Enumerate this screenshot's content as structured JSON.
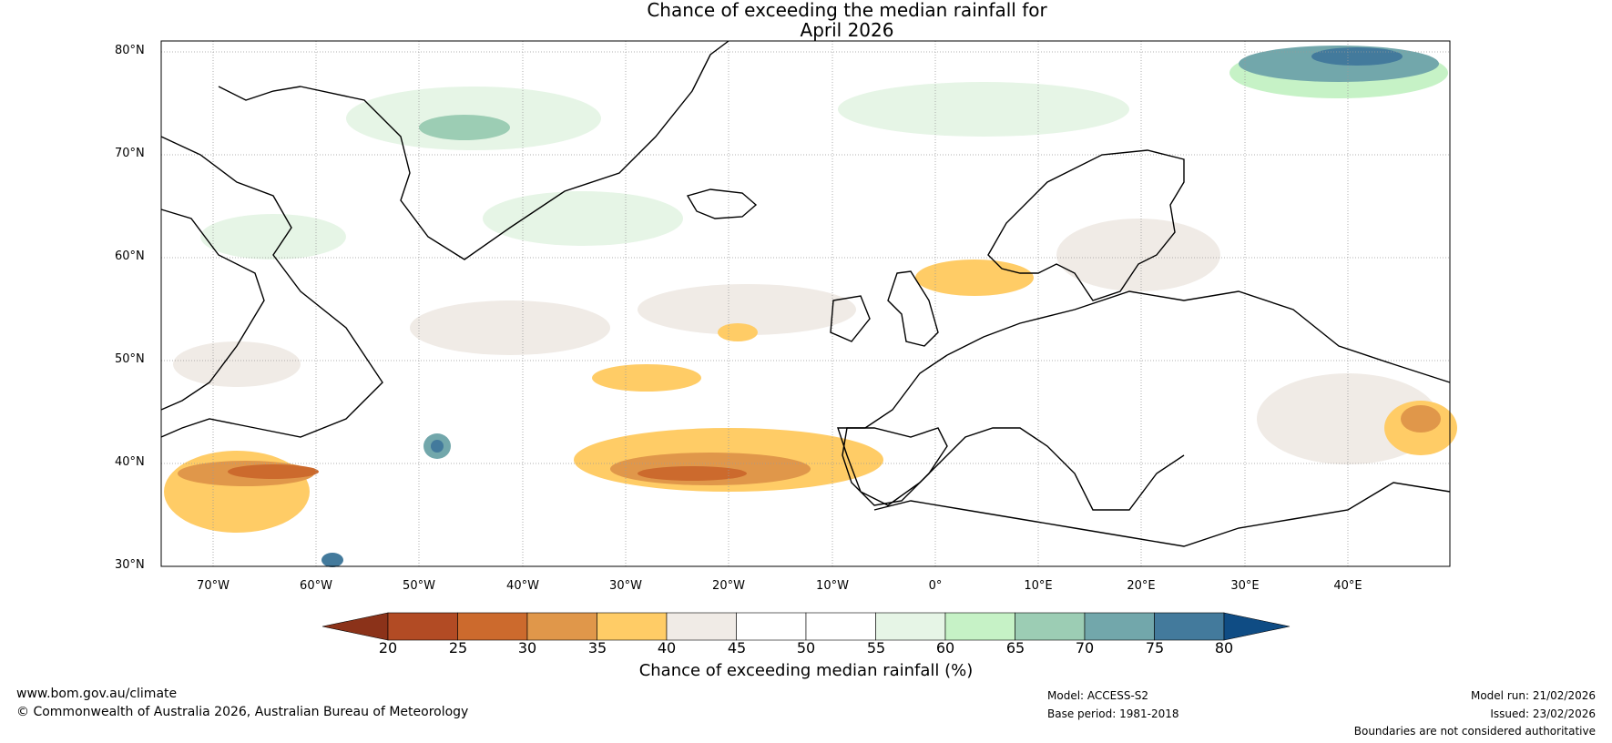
{
  "title": {
    "line1": "Chance of exceeding the median rainfall for",
    "line2": "April 2026"
  },
  "map": {
    "lat_labels": [
      "80°N",
      "70°N",
      "60°N",
      "50°N",
      "40°N",
      "30°N"
    ],
    "lon_labels": [
      "70°W",
      "60°W",
      "50°W",
      "40°W",
      "30°W",
      "20°W",
      "10°W",
      "0°",
      "10°E",
      "20°E",
      "30°E",
      "40°E"
    ]
  },
  "colorbar": {
    "ticks": [
      "20",
      "25",
      "30",
      "35",
      "40",
      "45",
      "50",
      "55",
      "60",
      "65",
      "70",
      "75",
      "80"
    ],
    "colors": [
      "#8b3219",
      "#b24b24",
      "#cc6a2d",
      "#e0974a",
      "#ffcc66",
      "#f0ebe6",
      "#ffffff",
      "#ffffff",
      "#e6f5e6",
      "#c6f2c6",
      "#9ccdb4",
      "#72a7ab",
      "#437a9c",
      "#0f4c84"
    ],
    "label": "Chance of exceeding median rainfall (%)"
  },
  "footer": {
    "website": "www.bom.gov.au/climate",
    "copyright": "© Commonwealth of Australia 2026, Australian Bureau of Meteorology",
    "model": "Model: ACCESS-S2",
    "base_period": "Base period: 1981-2018",
    "model_run": "Model run: 21/02/2026",
    "issued": "Issued: 23/02/2026",
    "disclaimer": "Boundaries are not considered authoritative"
  }
}
